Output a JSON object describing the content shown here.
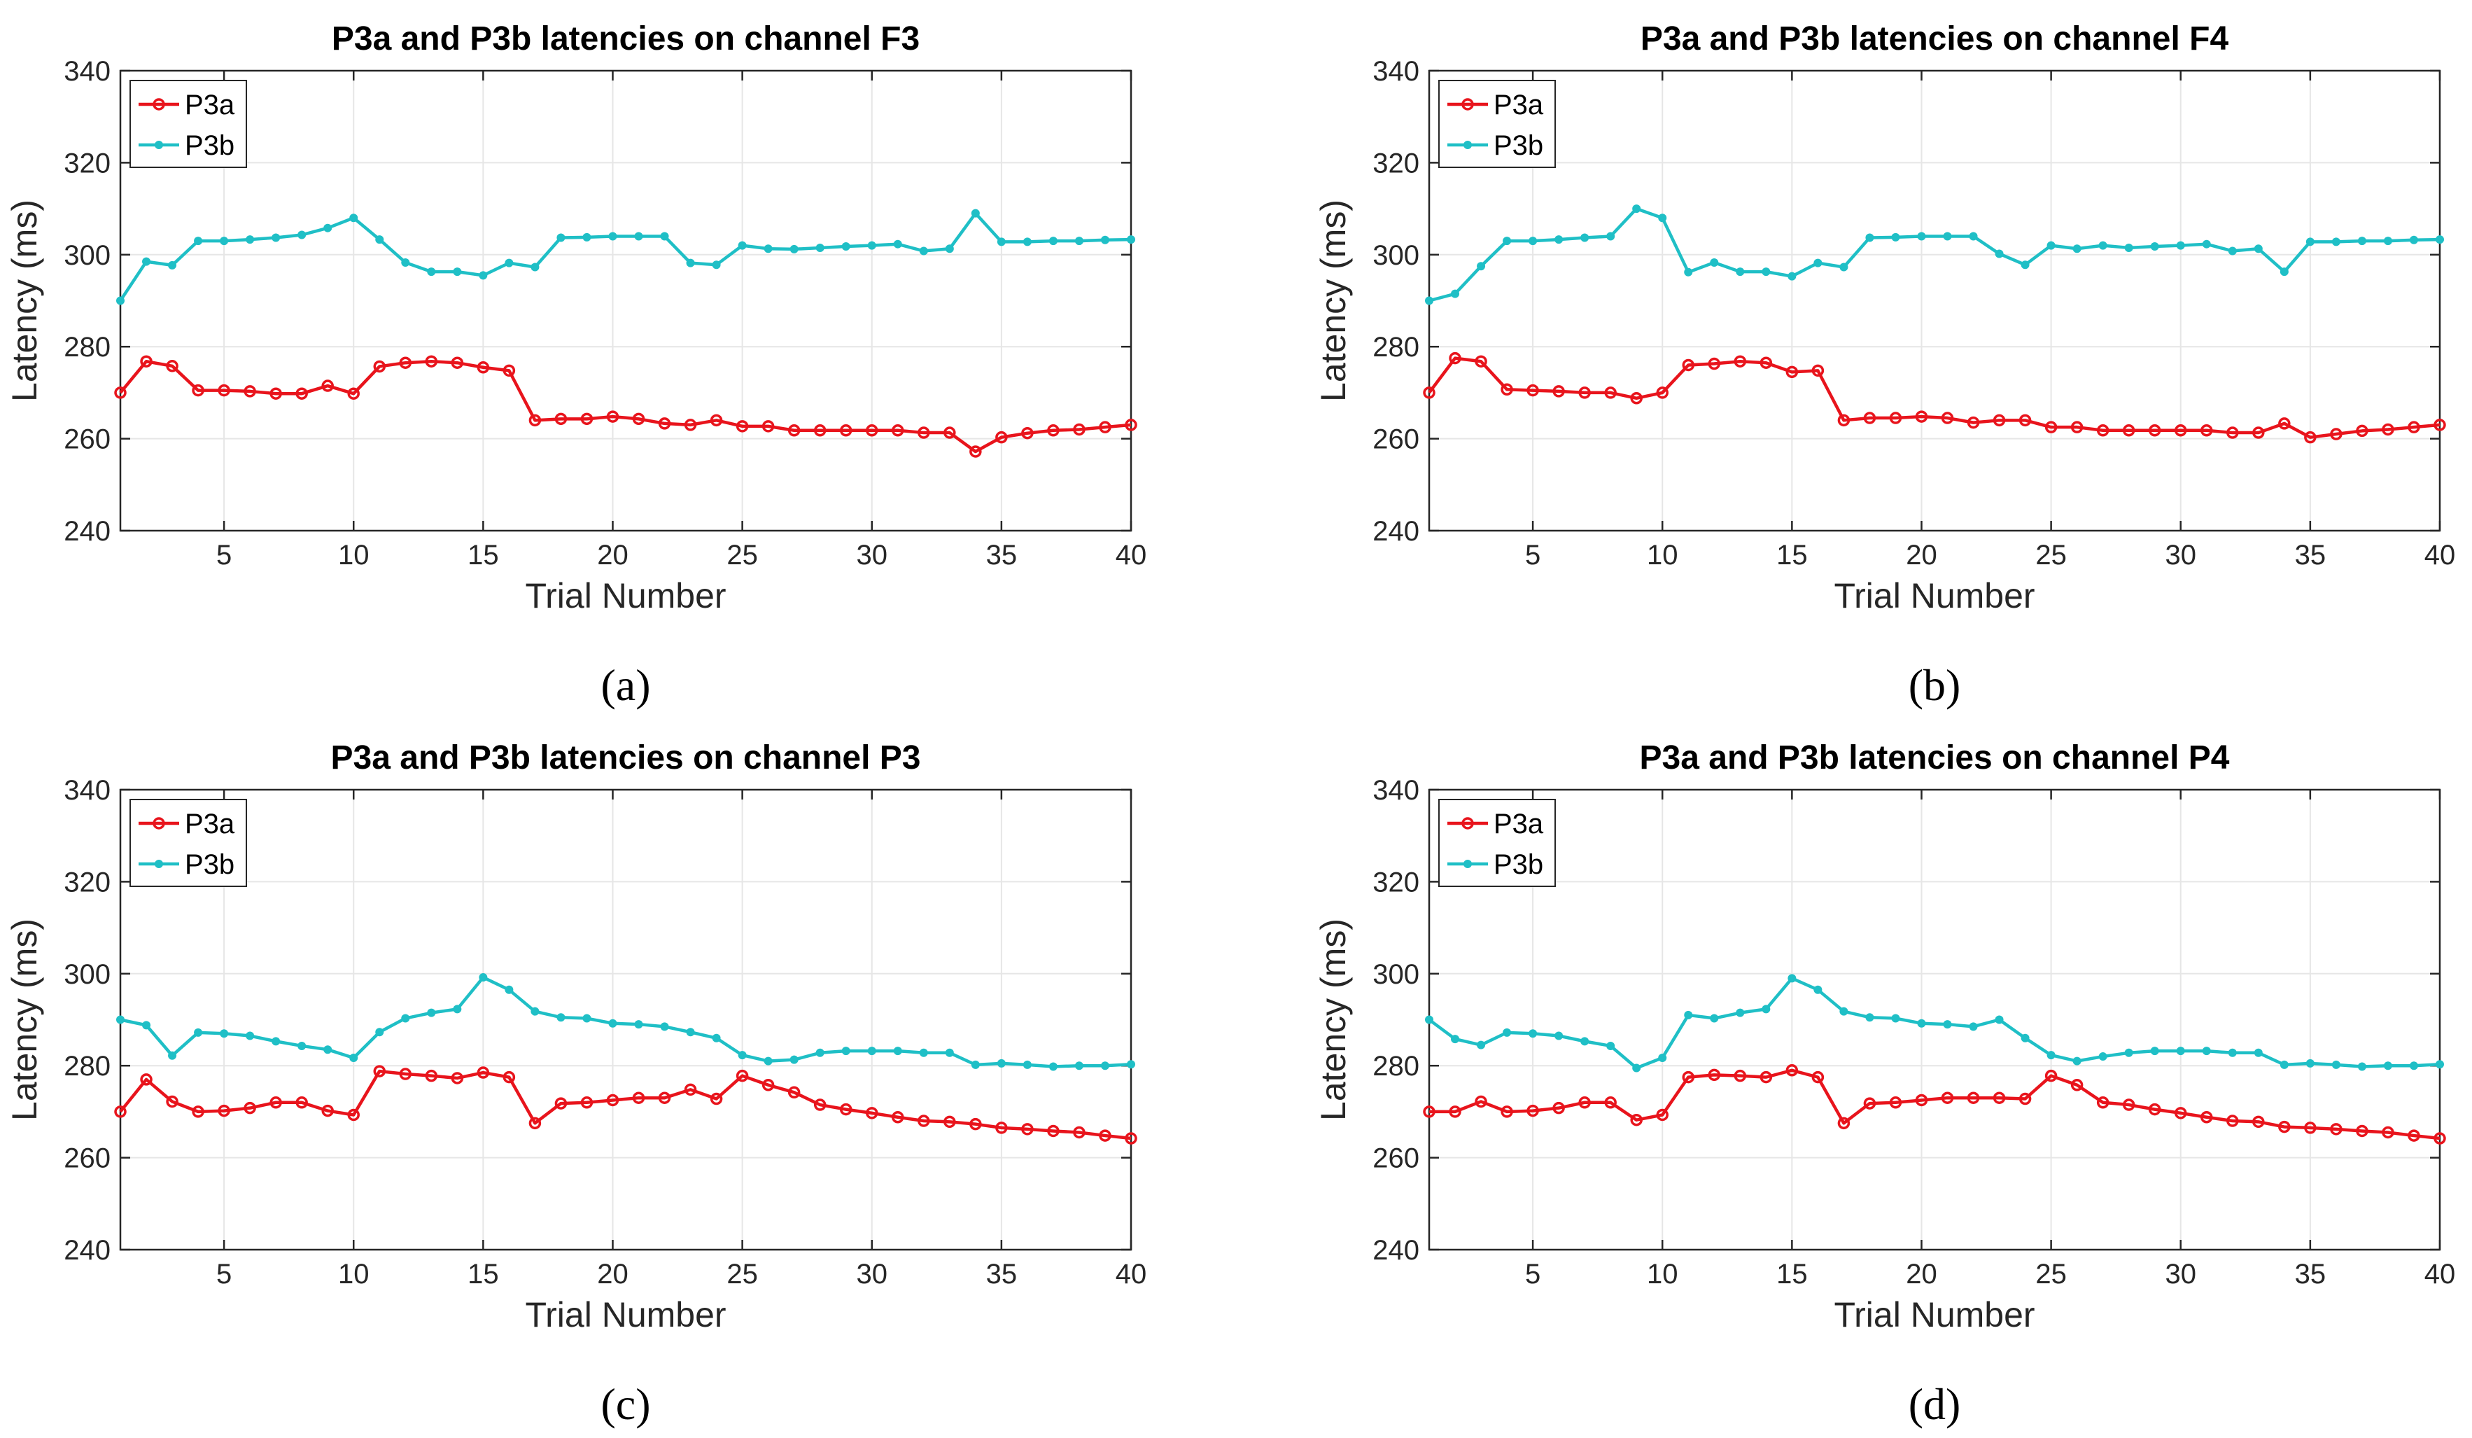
{
  "chart_data": [
    {
      "type": "line",
      "panel_label": "(a)",
      "title": "P3a and P3b latencies on channel F3",
      "xlabel": "Trial Number",
      "ylabel": "Latency (ms)",
      "xlim": [
        1,
        40
      ],
      "ylim": [
        240,
        340
      ],
      "xticks": [
        5,
        10,
        15,
        20,
        25,
        30,
        35,
        40
      ],
      "yticks": [
        240,
        260,
        280,
        300,
        320,
        340
      ],
      "grid": true,
      "legend_position": "top-left",
      "x": [
        1,
        2,
        3,
        4,
        5,
        6,
        7,
        8,
        9,
        10,
        11,
        12,
        13,
        14,
        15,
        16,
        17,
        18,
        19,
        20,
        21,
        22,
        23,
        24,
        25,
        26,
        27,
        28,
        29,
        30,
        31,
        32,
        33,
        34,
        35,
        36,
        37,
        38,
        39,
        40
      ],
      "series": [
        {
          "name": "P3a",
          "color": "#e8141c",
          "marker": "circle",
          "values": [
            270,
            276.8,
            275.8,
            270.5,
            270.5,
            270.3,
            269.8,
            269.8,
            271.5,
            269.8,
            275.7,
            276.5,
            276.8,
            276.5,
            275.5,
            274.8,
            264,
            264.3,
            264.3,
            264.8,
            264.3,
            263.3,
            263,
            264,
            262.7,
            262.7,
            261.8,
            261.8,
            261.8,
            261.8,
            261.8,
            261.3,
            261.3,
            257.2,
            260.3,
            261.2,
            261.8,
            262,
            262.5,
            263
          ]
        },
        {
          "name": "P3b",
          "color": "#1fbfc6",
          "marker": "dot",
          "values": [
            290,
            298.5,
            297.7,
            303,
            303,
            303.3,
            303.7,
            304.3,
            305.8,
            308,
            303.3,
            298.3,
            296.3,
            296.3,
            295.5,
            298.2,
            297.3,
            303.7,
            303.8,
            304,
            304,
            304,
            298.2,
            297.8,
            302,
            301.3,
            301.2,
            301.5,
            301.8,
            302,
            302.3,
            300.8,
            301.3,
            309,
            302.8,
            302.8,
            303,
            303,
            303.2,
            303.3
          ]
        }
      ]
    },
    {
      "type": "line",
      "panel_label": "(b)",
      "title": "P3a and P3b latencies on channel F4",
      "xlabel": "Trial Number",
      "ylabel": "Latency (ms)",
      "xlim": [
        1,
        40
      ],
      "ylim": [
        240,
        340
      ],
      "xticks": [
        5,
        10,
        15,
        20,
        25,
        30,
        35,
        40
      ],
      "yticks": [
        240,
        260,
        280,
        300,
        320,
        340
      ],
      "grid": true,
      "legend_position": "top-left",
      "x": [
        1,
        2,
        3,
        4,
        5,
        6,
        7,
        8,
        9,
        10,
        11,
        12,
        13,
        14,
        15,
        16,
        17,
        18,
        19,
        20,
        21,
        22,
        23,
        24,
        25,
        26,
        27,
        28,
        29,
        30,
        31,
        32,
        33,
        34,
        35,
        36,
        37,
        38,
        39,
        40
      ],
      "series": [
        {
          "name": "P3a",
          "color": "#e8141c",
          "marker": "circle",
          "values": [
            270,
            277.5,
            276.8,
            270.7,
            270.5,
            270.3,
            270,
            270,
            268.8,
            270,
            276,
            276.3,
            276.8,
            276.5,
            274.5,
            274.8,
            264,
            264.5,
            264.5,
            264.8,
            264.5,
            263.5,
            264,
            264,
            262.5,
            262.5,
            261.8,
            261.8,
            261.8,
            261.8,
            261.8,
            261.3,
            261.3,
            263.3,
            260.3,
            261,
            261.7,
            262,
            262.5,
            263
          ]
        },
        {
          "name": "P3b",
          "color": "#1fbfc6",
          "marker": "dot",
          "values": [
            290,
            291.5,
            297.5,
            303,
            303,
            303.3,
            303.7,
            304,
            310,
            308,
            296.2,
            298.3,
            296.3,
            296.3,
            295.3,
            298.2,
            297.3,
            303.7,
            303.8,
            304,
            304,
            304,
            300.2,
            297.8,
            302,
            301.3,
            302,
            301.5,
            301.8,
            302,
            302.3,
            300.8,
            301.3,
            296.3,
            302.8,
            302.8,
            303,
            303,
            303.2,
            303.3
          ]
        }
      ]
    },
    {
      "type": "line",
      "panel_label": "(c)",
      "title": "P3a and P3b latencies on channel P3",
      "xlabel": "Trial Number",
      "ylabel": "Latency (ms)",
      "xlim": [
        1,
        40
      ],
      "ylim": [
        240,
        340
      ],
      "xticks": [
        5,
        10,
        15,
        20,
        25,
        30,
        35,
        40
      ],
      "yticks": [
        240,
        260,
        280,
        300,
        320,
        340
      ],
      "grid": true,
      "legend_position": "top-left",
      "x": [
        1,
        2,
        3,
        4,
        5,
        6,
        7,
        8,
        9,
        10,
        11,
        12,
        13,
        14,
        15,
        16,
        17,
        18,
        19,
        20,
        21,
        22,
        23,
        24,
        25,
        26,
        27,
        28,
        29,
        30,
        31,
        32,
        33,
        34,
        35,
        36,
        37,
        38,
        39,
        40
      ],
      "series": [
        {
          "name": "P3a",
          "color": "#e8141c",
          "marker": "circle",
          "values": [
            270,
            277,
            272.2,
            270,
            270.2,
            270.8,
            272,
            272,
            270.2,
            269.3,
            278.8,
            278.2,
            277.8,
            277.3,
            278.5,
            277.5,
            267.5,
            271.8,
            272,
            272.5,
            273,
            273,
            274.8,
            272.8,
            277.8,
            275.8,
            274.2,
            271.5,
            270.5,
            269.7,
            268.8,
            268,
            267.8,
            267.3,
            266.5,
            266.2,
            265.8,
            265.5,
            264.8,
            264.2
          ]
        },
        {
          "name": "P3b",
          "color": "#1fbfc6",
          "marker": "dot",
          "values": [
            290,
            288.8,
            282.2,
            287.2,
            287,
            286.5,
            285.3,
            284.3,
            283.5,
            281.7,
            287.3,
            290.3,
            291.5,
            292.3,
            299.2,
            296.5,
            291.8,
            290.5,
            290.3,
            289.2,
            289,
            288.5,
            287.3,
            286,
            282.3,
            281,
            281.3,
            282.8,
            283.2,
            283.2,
            283.2,
            282.8,
            282.8,
            280.2,
            280.5,
            280.2,
            279.8,
            280,
            280,
            280.3
          ]
        }
      ]
    },
    {
      "type": "line",
      "panel_label": "(d)",
      "title": "P3a and P3b latencies on channel P4",
      "xlabel": "Trial Number",
      "ylabel": "Latency (ms)",
      "xlim": [
        1,
        40
      ],
      "ylim": [
        240,
        340
      ],
      "xticks": [
        5,
        10,
        15,
        20,
        25,
        30,
        35,
        40
      ],
      "yticks": [
        240,
        260,
        280,
        300,
        320,
        340
      ],
      "grid": true,
      "legend_position": "top-left",
      "x": [
        1,
        2,
        3,
        4,
        5,
        6,
        7,
        8,
        9,
        10,
        11,
        12,
        13,
        14,
        15,
        16,
        17,
        18,
        19,
        20,
        21,
        22,
        23,
        24,
        25,
        26,
        27,
        28,
        29,
        30,
        31,
        32,
        33,
        34,
        35,
        36,
        37,
        38,
        39,
        40
      ],
      "series": [
        {
          "name": "P3a",
          "color": "#e8141c",
          "marker": "circle",
          "values": [
            270,
            270,
            272.2,
            270,
            270.2,
            270.8,
            272,
            272,
            268.2,
            269.3,
            277.5,
            278,
            277.8,
            277.5,
            279,
            277.5,
            267.5,
            271.8,
            272,
            272.5,
            273,
            273,
            273,
            272.8,
            277.8,
            275.8,
            272,
            271.5,
            270.5,
            269.7,
            268.8,
            268,
            267.8,
            266.7,
            266.5,
            266.2,
            265.8,
            265.5,
            264.8,
            264.2
          ]
        },
        {
          "name": "P3b",
          "color": "#1fbfc6",
          "marker": "dot",
          "values": [
            290,
            285.8,
            284.5,
            287.2,
            287,
            286.5,
            285.3,
            284.3,
            279.5,
            281.7,
            291,
            290.3,
            291.5,
            292.3,
            299,
            296.5,
            291.8,
            290.5,
            290.3,
            289.2,
            289,
            288.5,
            290,
            286,
            282.3,
            281,
            282,
            282.8,
            283.2,
            283.2,
            283.2,
            282.8,
            282.8,
            280.2,
            280.5,
            280.2,
            279.8,
            280,
            280,
            280.3
          ]
        }
      ]
    }
  ]
}
